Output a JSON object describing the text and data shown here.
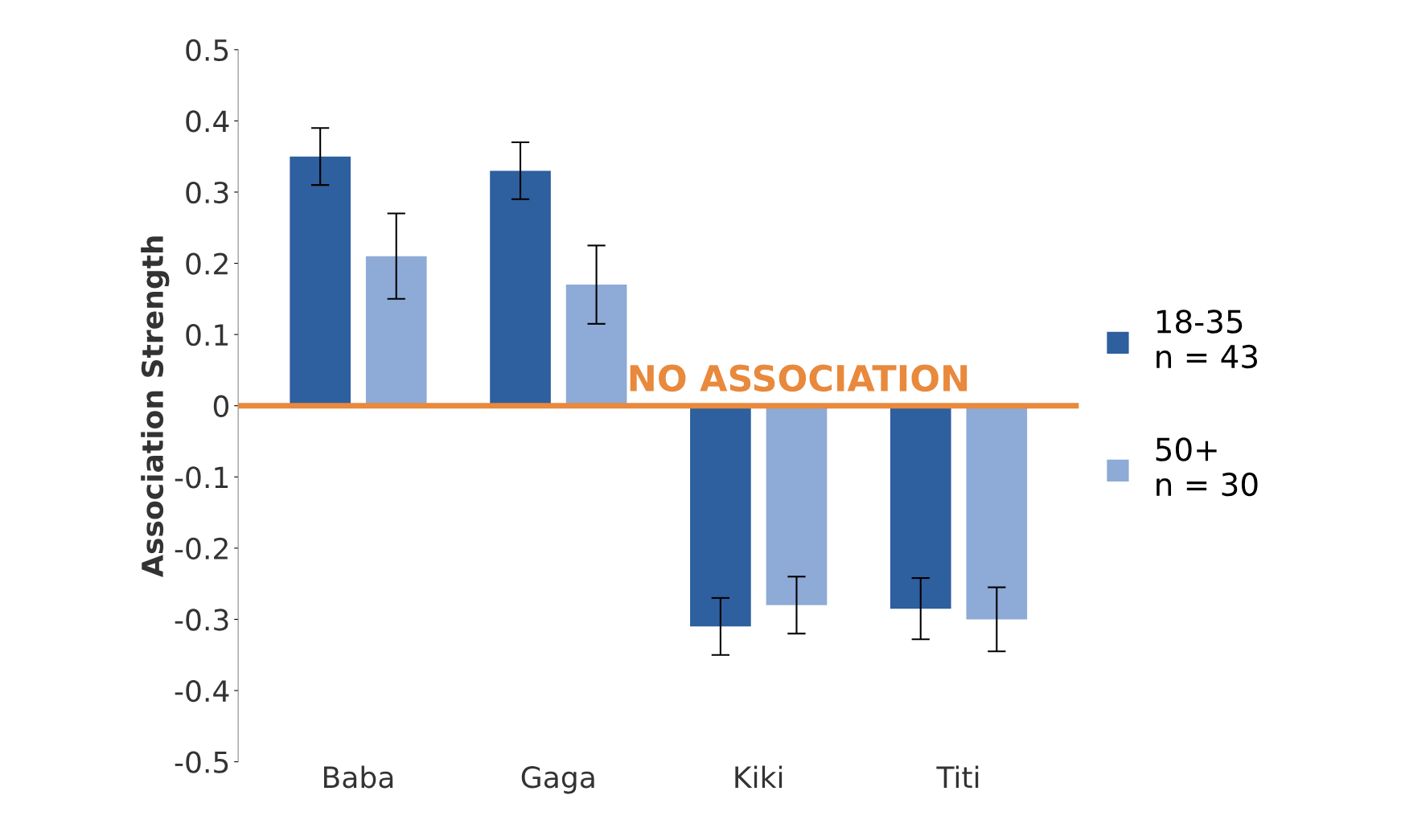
{
  "chart_data": {
    "type": "bar",
    "ylabel": "Association Strength",
    "categories": [
      "Baba",
      "Gaga",
      "Kiki",
      "Titi"
    ],
    "series": [
      {
        "name": "18-35\nn = 43",
        "color": "#2e5f9e",
        "values": [
          0.35,
          0.33,
          -0.31,
          -0.285
        ],
        "errors": [
          0.04,
          0.04,
          0.04,
          0.043
        ]
      },
      {
        "name": "50+\nn = 30",
        "color": "#8eaad6",
        "values": [
          0.21,
          0.17,
          -0.28,
          -0.3
        ],
        "errors": [
          0.06,
          0.055,
          0.04,
          0.045
        ]
      }
    ],
    "ylim": [
      -0.5,
      0.5
    ],
    "yticks": [
      -0.5,
      -0.4,
      -0.3,
      -0.2,
      -0.1,
      0,
      0.1,
      0.2,
      0.3,
      0.4,
      0.5
    ],
    "ref_lines": [
      {
        "axis": "y",
        "value": 0,
        "label": "NO ASSOCIATION",
        "color": "#e8893c"
      }
    ],
    "grid": false,
    "legend": "right"
  }
}
